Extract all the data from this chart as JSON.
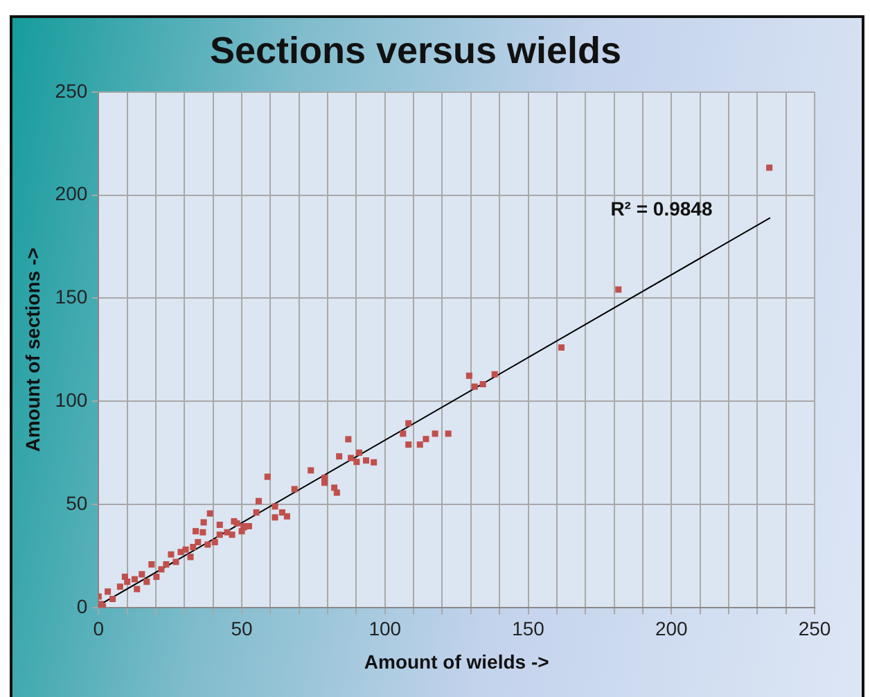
{
  "chart_data": {
    "type": "scatter",
    "title": "Sections versus wields",
    "xlabel": "Amount of wields ->",
    "ylabel": "Amount of sections ->",
    "xlim": [
      0,
      250
    ],
    "ylim": [
      0,
      250
    ],
    "xticks": [
      0,
      {
        "value": 10,
        "label": null
      },
      {
        "value": 20,
        "label": null
      },
      {
        "value": 30,
        "label": null
      },
      {
        "value": 40,
        "label": null
      },
      50,
      {
        "value": 60,
        "label": null
      },
      {
        "value": 70,
        "label": null
      },
      {
        "value": 80,
        "label": null
      },
      {
        "value": 90,
        "label": null
      },
      100,
      {
        "value": 110,
        "label": null
      },
      {
        "value": 120,
        "label": null
      },
      {
        "value": 130,
        "label": null
      },
      {
        "value": 140,
        "label": null
      },
      150,
      {
        "value": 160,
        "label": null
      },
      {
        "value": 170,
        "label": null
      },
      {
        "value": 180,
        "label": null
      },
      {
        "value": 190,
        "label": null
      },
      200,
      {
        "value": 210,
        "label": null
      },
      {
        "value": 220,
        "label": null
      },
      {
        "value": 230,
        "label": null
      },
      {
        "value": 240,
        "label": null
      },
      250
    ],
    "yticks": [
      0,
      50,
      100,
      150,
      200,
      250
    ],
    "grid": true,
    "legend": false,
    "annotations": [
      "R² = 0.9848"
    ],
    "series": [
      {
        "type": "scatter",
        "color": "#c0504d",
        "marker": "square",
        "x": [
          234.2,
          181.5,
          161.6,
          129.4,
          131.3,
          134.2,
          138.3,
          108.2,
          106.3,
          108.2,
          112.2,
          114.3,
          117.5,
          122.1,
          87.2,
          84.0,
          88.1,
          91.0,
          90.1,
          93.4,
          96.1,
          74.1,
          78.9,
          78.9,
          82.3,
          83.2,
          59.0,
          68.4,
          55.9,
          55.1,
          61.6,
          61.6,
          64.1,
          65.8,
          38.9,
          36.7,
          33.9,
          42.3,
          47.3,
          50.6,
          50.0,
          0,
          0.7,
          1.5,
          3.2,
          4.9,
          7.5,
          9.2,
          10.0,
          12.6,
          13.4,
          15.1,
          16.8,
          18.5,
          20.2,
          21.9,
          23.6,
          25.3,
          27.0,
          28.7,
          30.4,
          32.1,
          33.0,
          34.7,
          36.4,
          38.1,
          40.6,
          42.3,
          44.9,
          46.6,
          48.3,
          50.8,
          52.5
        ],
        "values": [
          213.3,
          154.2,
          126.1,
          112.4,
          107.1,
          108.3,
          113.1,
          89.3,
          84.3,
          79.0,
          79.0,
          81.7,
          84.3,
          84.3,
          81.6,
          73.3,
          72.5,
          75.1,
          70.6,
          71.3,
          70.4,
          66.5,
          62.9,
          60.5,
          58.1,
          55.7,
          63.4,
          57.4,
          51.6,
          46.1,
          49.0,
          43.7,
          46.1,
          44.2,
          45.6,
          41.3,
          37.0,
          40.1,
          41.8,
          39.4,
          37.0,
          5.3,
          1.7,
          0.5,
          7.7,
          4.1,
          10.1,
          14.9,
          12.5,
          13.7,
          8.9,
          16.1,
          12.5,
          20.9,
          14.9,
          18.5,
          20.9,
          25.7,
          22.1,
          26.9,
          28.1,
          24.5,
          29.3,
          31.7,
          36.5,
          30.5,
          31.7,
          35.3,
          36.5,
          35.3,
          40.8,
          38.9,
          39.4
        ]
      },
      {
        "type": "line",
        "color": "#000000",
        "marker": "none",
        "x": [
          0,
          234.5
        ],
        "values": [
          1,
          189
        ]
      }
    ]
  }
}
